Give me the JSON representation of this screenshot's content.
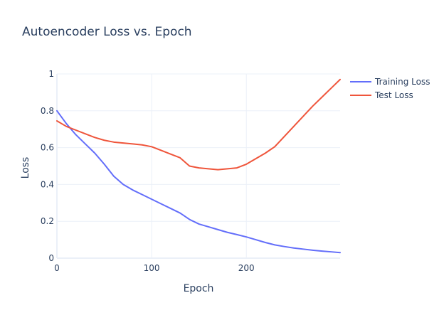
{
  "chart_data": {
    "type": "line",
    "title": "Autoencoder Loss vs. Epoch",
    "xlabel": "Epoch",
    "ylabel": "Loss",
    "xlim": [
      0,
      299
    ],
    "ylim": [
      0,
      1
    ],
    "x_ticks": [
      0,
      100,
      200
    ],
    "x_tick_labels": [
      "0",
      "100",
      "200"
    ],
    "y_ticks": [
      0,
      0.2,
      0.4,
      0.6,
      0.8,
      1
    ],
    "y_tick_labels": [
      "0",
      "0.2",
      "0.4",
      "0.6",
      "0.8",
      "1"
    ],
    "grid": true,
    "legend": "top-right",
    "series": [
      {
        "name": "Training Loss",
        "color": "#636efa",
        "x": [
          0,
          10,
          20,
          30,
          40,
          50,
          60,
          70,
          80,
          90,
          100,
          110,
          120,
          130,
          140,
          150,
          160,
          170,
          180,
          190,
          200,
          210,
          220,
          230,
          240,
          250,
          260,
          270,
          280,
          290,
          299
        ],
        "y": [
          0.8,
          0.73,
          0.67,
          0.62,
          0.57,
          0.51,
          0.445,
          0.4,
          0.37,
          0.345,
          0.32,
          0.295,
          0.27,
          0.245,
          0.21,
          0.185,
          0.17,
          0.155,
          0.14,
          0.128,
          0.115,
          0.1,
          0.085,
          0.072,
          0.063,
          0.055,
          0.049,
          0.043,
          0.038,
          0.034,
          0.03
        ]
      },
      {
        "name": "Test Loss",
        "color": "#ef553b",
        "x": [
          0,
          10,
          20,
          30,
          40,
          50,
          60,
          70,
          80,
          90,
          100,
          110,
          120,
          130,
          140,
          150,
          160,
          170,
          180,
          190,
          200,
          210,
          220,
          230,
          240,
          250,
          260,
          270,
          280,
          290,
          299
        ],
        "y": [
          0.745,
          0.715,
          0.695,
          0.675,
          0.655,
          0.64,
          0.63,
          0.625,
          0.62,
          0.615,
          0.605,
          0.585,
          0.565,
          0.545,
          0.5,
          0.49,
          0.485,
          0.48,
          0.485,
          0.49,
          0.51,
          0.54,
          0.57,
          0.605,
          0.66,
          0.715,
          0.77,
          0.825,
          0.875,
          0.925,
          0.97
        ]
      }
    ]
  }
}
